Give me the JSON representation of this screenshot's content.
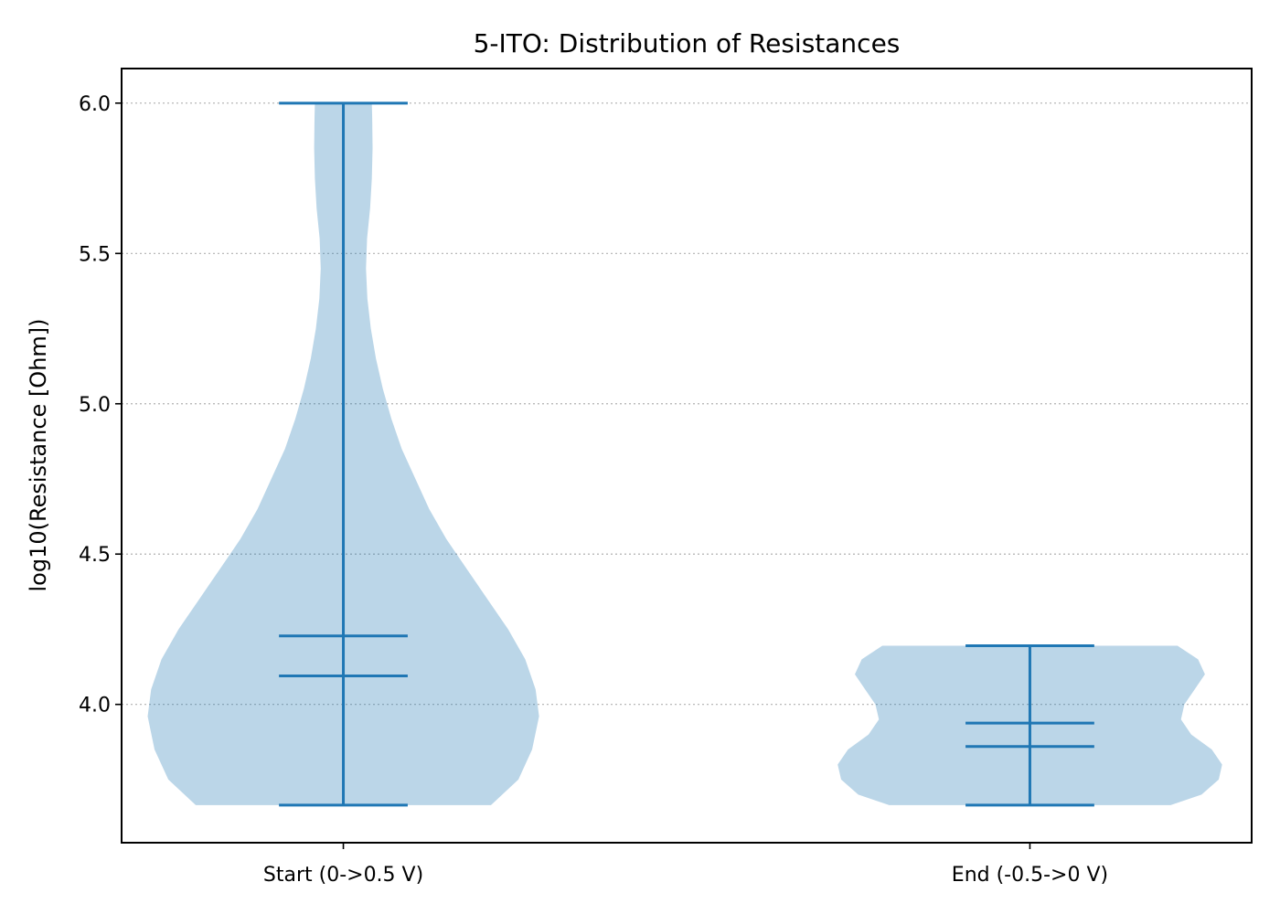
{
  "chart_data": {
    "type": "violin",
    "title": "5-ITO: Distribution of Resistances",
    "xlabel": "",
    "ylabel": "log10(Resistance [Ohm])",
    "categories": [
      "Start (0->0.5 V)",
      "End (-0.5->0 V)"
    ],
    "ylim": [
      3.54,
      6.115
    ],
    "yticks": [
      4.0,
      4.5,
      5.0,
      5.5,
      6.0
    ],
    "ytick_labels": [
      "4.0",
      "4.5",
      "5.0",
      "5.5",
      "6.0"
    ],
    "grid": "horizontal dotted",
    "colors": {
      "body": "#1f77b4",
      "body_opacity": 0.3,
      "lines": "#1f77b4"
    },
    "violins": [
      {
        "category": "Start (0->0.5 V)",
        "min": 3.665,
        "max": 6.0,
        "lines": [
          4.228,
          4.095
        ],
        "profile": [
          [
            3.665,
            0.43
          ],
          [
            3.75,
            0.51
          ],
          [
            3.85,
            0.55
          ],
          [
            3.96,
            0.57
          ],
          [
            4.05,
            0.56
          ],
          [
            4.15,
            0.53
          ],
          [
            4.25,
            0.48
          ],
          [
            4.35,
            0.42
          ],
          [
            4.45,
            0.36
          ],
          [
            4.55,
            0.3
          ],
          [
            4.65,
            0.25
          ],
          [
            4.75,
            0.21
          ],
          [
            4.85,
            0.17
          ],
          [
            4.95,
            0.14
          ],
          [
            5.05,
            0.115
          ],
          [
            5.15,
            0.095
          ],
          [
            5.25,
            0.08
          ],
          [
            5.35,
            0.07
          ],
          [
            5.45,
            0.066
          ],
          [
            5.55,
            0.069
          ],
          [
            5.65,
            0.078
          ],
          [
            5.75,
            0.083
          ],
          [
            5.85,
            0.085
          ],
          [
            5.95,
            0.084
          ],
          [
            6.0,
            0.083
          ]
        ]
      },
      {
        "category": "End (-0.5->0 V)",
        "min": 3.665,
        "max": 4.195,
        "lines": [
          3.938,
          3.86
        ],
        "profile": [
          [
            3.665,
            0.41
          ],
          [
            3.7,
            0.5
          ],
          [
            3.75,
            0.55
          ],
          [
            3.8,
            0.56
          ],
          [
            3.85,
            0.53
          ],
          [
            3.9,
            0.47
          ],
          [
            3.95,
            0.44
          ],
          [
            4.0,
            0.45
          ],
          [
            4.05,
            0.48
          ],
          [
            4.1,
            0.51
          ],
          [
            4.15,
            0.49
          ],
          [
            4.195,
            0.43
          ]
        ]
      }
    ]
  }
}
